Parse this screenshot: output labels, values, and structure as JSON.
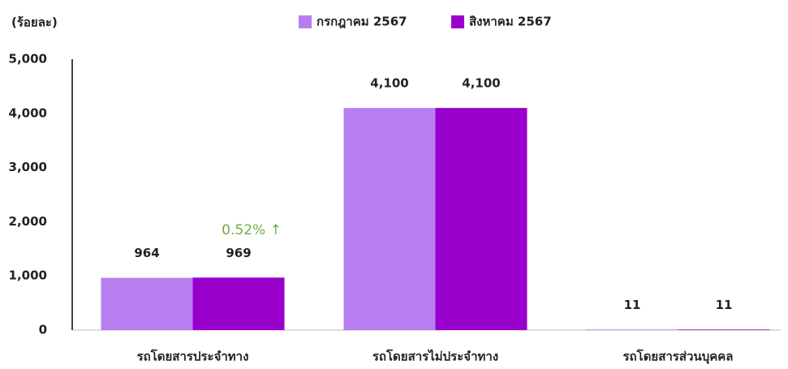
{
  "chart_data": {
    "type": "bar",
    "y_label": "(ร้อยละ)",
    "categories": [
      "รถโดยสารประจำทาง",
      "รถโดยสารไม่ประจำทาง",
      "รถโดยสารส่วนบุคคล"
    ],
    "series": [
      {
        "name": "กรกฎาคม 2567",
        "color": "#b77ef2",
        "values": [
          964,
          4100,
          11
        ],
        "value_labels": [
          "964",
          "4,100",
          "11"
        ]
      },
      {
        "name": "สิงหาคม 2567",
        "color": "#9900cc",
        "values": [
          969,
          4100,
          11
        ],
        "value_labels": [
          "969",
          "4,100",
          "11"
        ]
      }
    ],
    "ylim": [
      0,
      5000
    ],
    "yticks": [
      0,
      {
        "value": 1000,
        "label": "1,000"
      },
      {
        "value": 2000,
        "label": "2,000"
      },
      {
        "value": 3000,
        "label": "3,000"
      },
      {
        "value": 4000,
        "label": "4,000"
      },
      {
        "value": 5000,
        "label": "5,000"
      }
    ],
    "annotation": {
      "text": "0.52% ↑",
      "color": "#70ad47"
    },
    "legend": "top"
  }
}
